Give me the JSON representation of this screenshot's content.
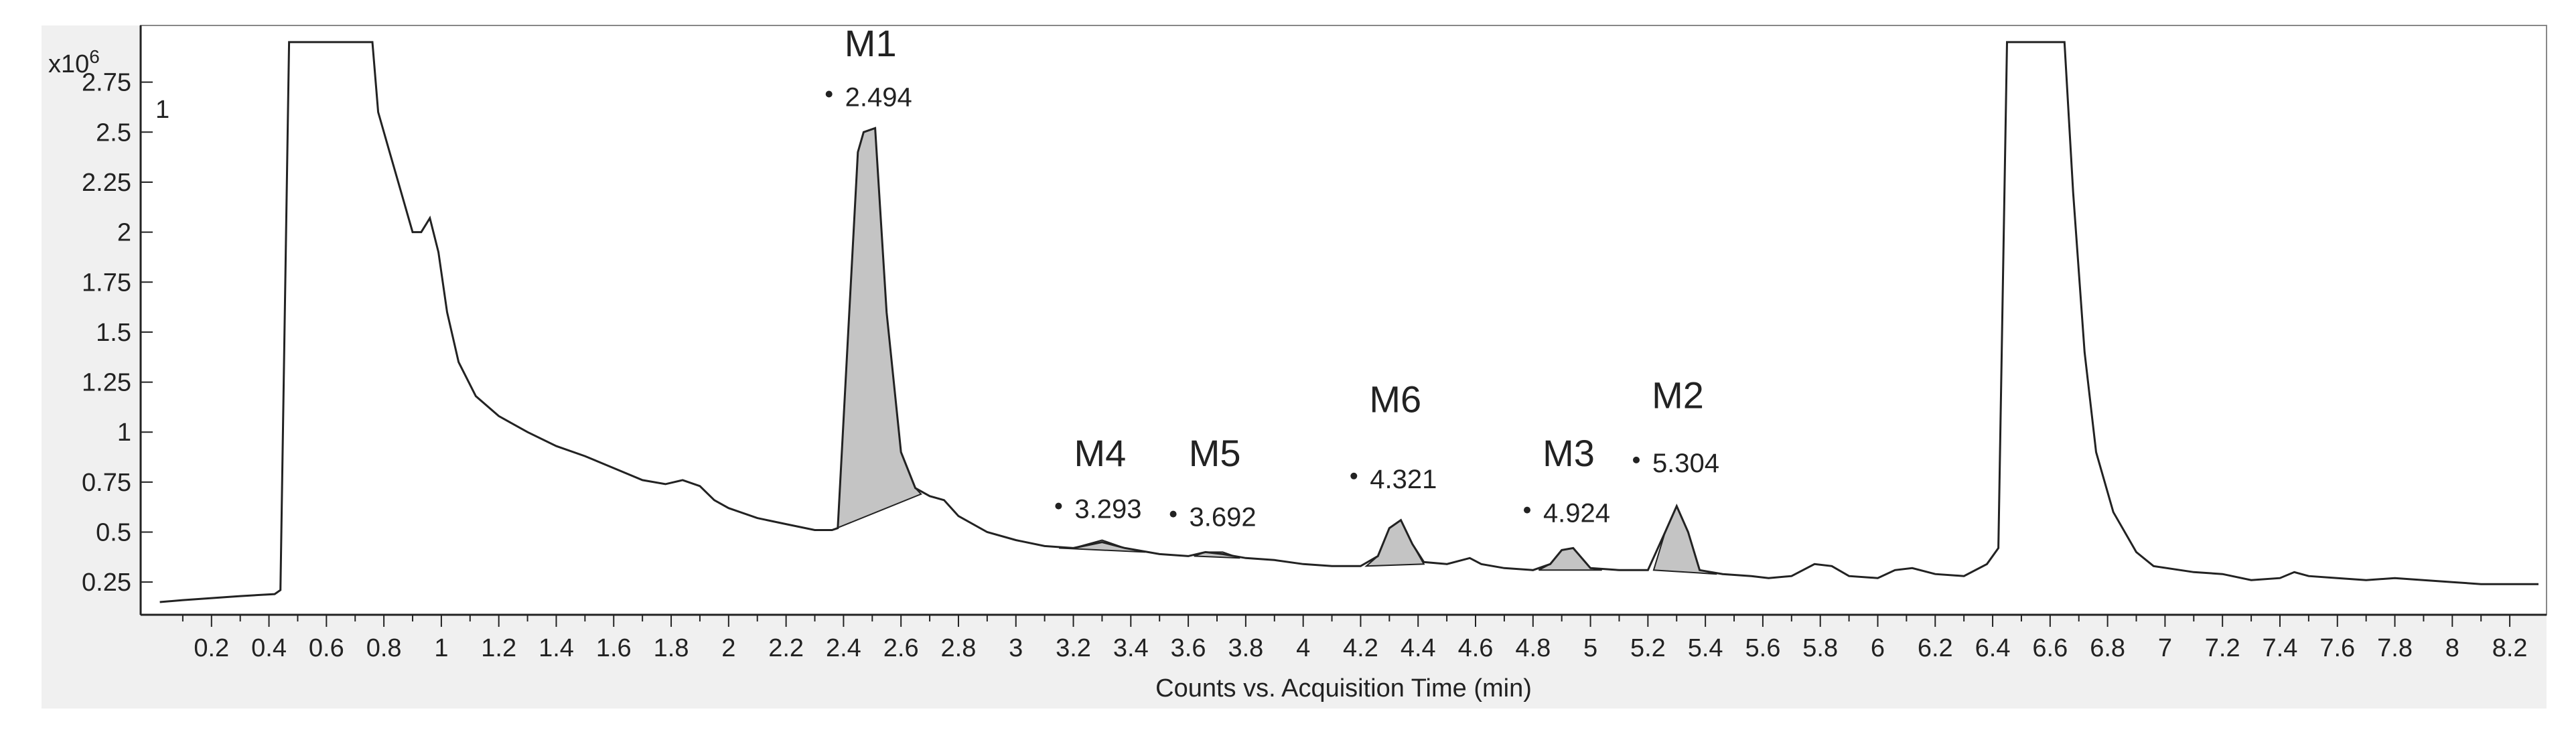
{
  "chart_data": {
    "type": "line",
    "y_multiplier": "x10",
    "y_exponent": "6",
    "trace_index": "1",
    "xlabel": "Counts vs. Acquisition Time (min)",
    "xlim": [
      0.0,
      8.3
    ],
    "ylim": [
      0.12,
      3.0
    ],
    "x_ticks": [
      "0.2",
      "0.4",
      "0.6",
      "0.8",
      "1",
      "1.2",
      "1.4",
      "1.6",
      "1.8",
      "2",
      "2.2",
      "2.4",
      "2.6",
      "2.8",
      "3",
      "3.2",
      "3.4",
      "3.6",
      "3.8",
      "4",
      "4.2",
      "4.4",
      "4.6",
      "4.8",
      "5",
      "5.2",
      "5.4",
      "5.6",
      "5.8",
      "6",
      "6.2",
      "6.4",
      "6.6",
      "6.8",
      "7",
      "7.2",
      "7.4",
      "7.6",
      "7.8",
      "8",
      "8.2"
    ],
    "y_ticks": [
      "0.25",
      "0.5",
      "0.75",
      "1",
      "1.25",
      "1.5",
      "1.75",
      "2",
      "2.25",
      "2.5",
      "2.75"
    ],
    "series": [
      {
        "values": [
          [
            0.02,
            0.15
          ],
          [
            0.1,
            0.16
          ],
          [
            0.2,
            0.17
          ],
          [
            0.3,
            0.18
          ],
          [
            0.42,
            0.19
          ],
          [
            0.44,
            0.21
          ],
          [
            0.47,
            2.95
          ],
          [
            0.76,
            2.95
          ],
          [
            0.78,
            2.6
          ],
          [
            0.82,
            2.4
          ],
          [
            0.86,
            2.2
          ],
          [
            0.9,
            2.0
          ],
          [
            0.93,
            2.0
          ],
          [
            0.96,
            2.07
          ],
          [
            0.99,
            1.9
          ],
          [
            1.02,
            1.6
          ],
          [
            1.06,
            1.35
          ],
          [
            1.12,
            1.18
          ],
          [
            1.2,
            1.08
          ],
          [
            1.3,
            1.0
          ],
          [
            1.4,
            0.93
          ],
          [
            1.5,
            0.88
          ],
          [
            1.6,
            0.82
          ],
          [
            1.7,
            0.76
          ],
          [
            1.78,
            0.74
          ],
          [
            1.84,
            0.76
          ],
          [
            1.9,
            0.73
          ],
          [
            1.95,
            0.66
          ],
          [
            2.0,
            0.62
          ],
          [
            2.1,
            0.57
          ],
          [
            2.2,
            0.54
          ],
          [
            2.3,
            0.51
          ],
          [
            2.36,
            0.51
          ],
          [
            2.38,
            0.52
          ],
          [
            2.42,
            1.6
          ],
          [
            2.45,
            2.4
          ],
          [
            2.47,
            2.5
          ],
          [
            2.51,
            2.52
          ],
          [
            2.55,
            1.6
          ],
          [
            2.6,
            0.9
          ],
          [
            2.65,
            0.72
          ],
          [
            2.7,
            0.68
          ],
          [
            2.75,
            0.66
          ],
          [
            2.8,
            0.58
          ],
          [
            2.9,
            0.5
          ],
          [
            3.0,
            0.46
          ],
          [
            3.1,
            0.43
          ],
          [
            3.2,
            0.42
          ],
          [
            3.3,
            0.45
          ],
          [
            3.38,
            0.42
          ],
          [
            3.5,
            0.39
          ],
          [
            3.6,
            0.38
          ],
          [
            3.66,
            0.4
          ],
          [
            3.72,
            0.39
          ],
          [
            3.8,
            0.37
          ],
          [
            3.9,
            0.36
          ],
          [
            4.0,
            0.34
          ],
          [
            4.1,
            0.33
          ],
          [
            4.2,
            0.33
          ],
          [
            4.26,
            0.38
          ],
          [
            4.3,
            0.52
          ],
          [
            4.34,
            0.56
          ],
          [
            4.38,
            0.44
          ],
          [
            4.42,
            0.35
          ],
          [
            4.5,
            0.34
          ],
          [
            4.58,
            0.37
          ],
          [
            4.62,
            0.34
          ],
          [
            4.7,
            0.32
          ],
          [
            4.8,
            0.31
          ],
          [
            4.86,
            0.34
          ],
          [
            4.9,
            0.41
          ],
          [
            4.94,
            0.42
          ],
          [
            5.0,
            0.32
          ],
          [
            5.1,
            0.31
          ],
          [
            5.2,
            0.31
          ],
          [
            5.26,
            0.5
          ],
          [
            5.3,
            0.63
          ],
          [
            5.34,
            0.5
          ],
          [
            5.38,
            0.31
          ],
          [
            5.46,
            0.29
          ],
          [
            5.56,
            0.28
          ],
          [
            5.62,
            0.27
          ],
          [
            5.7,
            0.28
          ],
          [
            5.78,
            0.34
          ],
          [
            5.84,
            0.33
          ],
          [
            5.9,
            0.28
          ],
          [
            6.0,
            0.27
          ],
          [
            6.06,
            0.31
          ],
          [
            6.12,
            0.32
          ],
          [
            6.2,
            0.29
          ],
          [
            6.3,
            0.28
          ],
          [
            6.38,
            0.34
          ],
          [
            6.42,
            0.42
          ],
          [
            6.45,
            2.95
          ],
          [
            6.65,
            2.95
          ],
          [
            6.68,
            2.2
          ],
          [
            6.72,
            1.4
          ],
          [
            6.76,
            0.9
          ],
          [
            6.82,
            0.6
          ],
          [
            6.9,
            0.4
          ],
          [
            6.96,
            0.33
          ],
          [
            7.1,
            0.3
          ],
          [
            7.2,
            0.29
          ],
          [
            7.3,
            0.26
          ],
          [
            7.4,
            0.27
          ],
          [
            7.45,
            0.3
          ],
          [
            7.5,
            0.28
          ],
          [
            7.6,
            0.27
          ],
          [
            7.7,
            0.26
          ],
          [
            7.8,
            0.27
          ],
          [
            7.9,
            0.26
          ],
          [
            8.0,
            0.25
          ],
          [
            8.1,
            0.24
          ],
          [
            8.2,
            0.24
          ],
          [
            8.3,
            0.24
          ]
        ]
      }
    ],
    "peaks": [
      {
        "name": "M1",
        "rt_label": "2.494",
        "rt": 2.494,
        "apex": 2.52,
        "label_y_name": 2.88,
        "label_y_rt": 2.63,
        "fill": [
          [
            2.36,
            0.51
          ],
          [
            2.38,
            0.52
          ],
          [
            2.42,
            1.6
          ],
          [
            2.45,
            2.4
          ],
          [
            2.47,
            2.5
          ],
          [
            2.51,
            2.52
          ],
          [
            2.55,
            1.6
          ],
          [
            2.6,
            0.9
          ],
          [
            2.65,
            0.72
          ],
          [
            2.67,
            0.69
          ]
        ]
      },
      {
        "name": "M4",
        "rt_label": "3.293",
        "rt": 3.293,
        "label_y_name": 0.83,
        "label_y_rt": 0.57,
        "fill": [
          [
            3.15,
            0.42
          ],
          [
            3.2,
            0.42
          ],
          [
            3.3,
            0.46
          ],
          [
            3.38,
            0.42
          ],
          [
            3.45,
            0.4
          ]
        ]
      },
      {
        "name": "M5",
        "rt_label": "3.692",
        "rt": 3.692,
        "label_y_name": 0.83,
        "label_y_rt": 0.53,
        "fill": [
          [
            3.62,
            0.38
          ],
          [
            3.66,
            0.4
          ],
          [
            3.72,
            0.4
          ],
          [
            3.78,
            0.37
          ]
        ]
      },
      {
        "name": "M6",
        "rt_label": "4.321",
        "rt": 4.321,
        "label_y_name": 1.1,
        "label_y_rt": 0.72,
        "fill": [
          [
            4.22,
            0.33
          ],
          [
            4.26,
            0.38
          ],
          [
            4.3,
            0.52
          ],
          [
            4.34,
            0.56
          ],
          [
            4.38,
            0.44
          ],
          [
            4.42,
            0.34
          ]
        ]
      },
      {
        "name": "M3",
        "rt_label": "4.924",
        "rt": 4.924,
        "label_y_name": 0.83,
        "label_y_rt": 0.55,
        "fill": [
          [
            4.82,
            0.31
          ],
          [
            4.86,
            0.34
          ],
          [
            4.9,
            0.41
          ],
          [
            4.94,
            0.42
          ],
          [
            5.0,
            0.32
          ],
          [
            5.04,
            0.31
          ]
        ]
      },
      {
        "name": "M2",
        "rt_label": "5.304",
        "rt": 5.304,
        "label_y_name": 1.12,
        "label_y_rt": 0.8,
        "fill": [
          [
            5.22,
            0.31
          ],
          [
            5.26,
            0.5
          ],
          [
            5.3,
            0.63
          ],
          [
            5.34,
            0.5
          ],
          [
            5.38,
            0.31
          ],
          [
            5.44,
            0.29
          ]
        ]
      }
    ],
    "colors": {
      "line": "#222222",
      "peak_fill": "#c4c4c4",
      "frame": "#f0f0f0",
      "plot_bg": "#ffffff",
      "axis": "#222222"
    },
    "grid": false,
    "legend": "none"
  }
}
